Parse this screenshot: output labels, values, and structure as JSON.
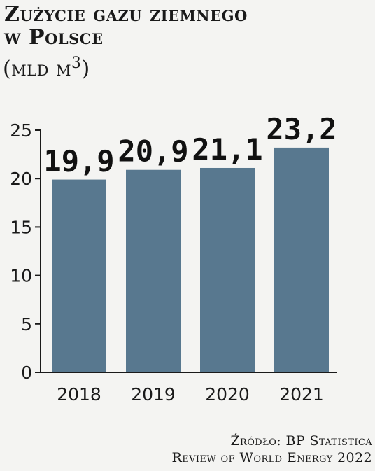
{
  "header": {
    "title_line1": "Zużycie gazu ziemnego",
    "title_line2": "w Polsce",
    "unit_text": "(mld m",
    "unit_sup": "3",
    "unit_close": ")"
  },
  "source": {
    "line1": "Źródło: BP Statistica",
    "line2": "Review of World Energy 2022"
  },
  "colors": {
    "bar": "#58788f",
    "axis": "#1a1a1a",
    "background": "#f4f4f2"
  },
  "chart_data": {
    "type": "bar",
    "categories": [
      "2018",
      "2019",
      "2020",
      "2021"
    ],
    "values": [
      19.9,
      20.9,
      21.1,
      23.2
    ],
    "value_labels": [
      "19,9",
      "20,9",
      "21,1",
      "23,2"
    ],
    "title": "Zużycie gazu ziemnego w Polsce",
    "ylabel": "",
    "xlabel": "",
    "ylim": [
      0,
      25
    ],
    "yticks": [
      0,
      5,
      10,
      15,
      20,
      25
    ],
    "grid": false,
    "legend": "none"
  }
}
